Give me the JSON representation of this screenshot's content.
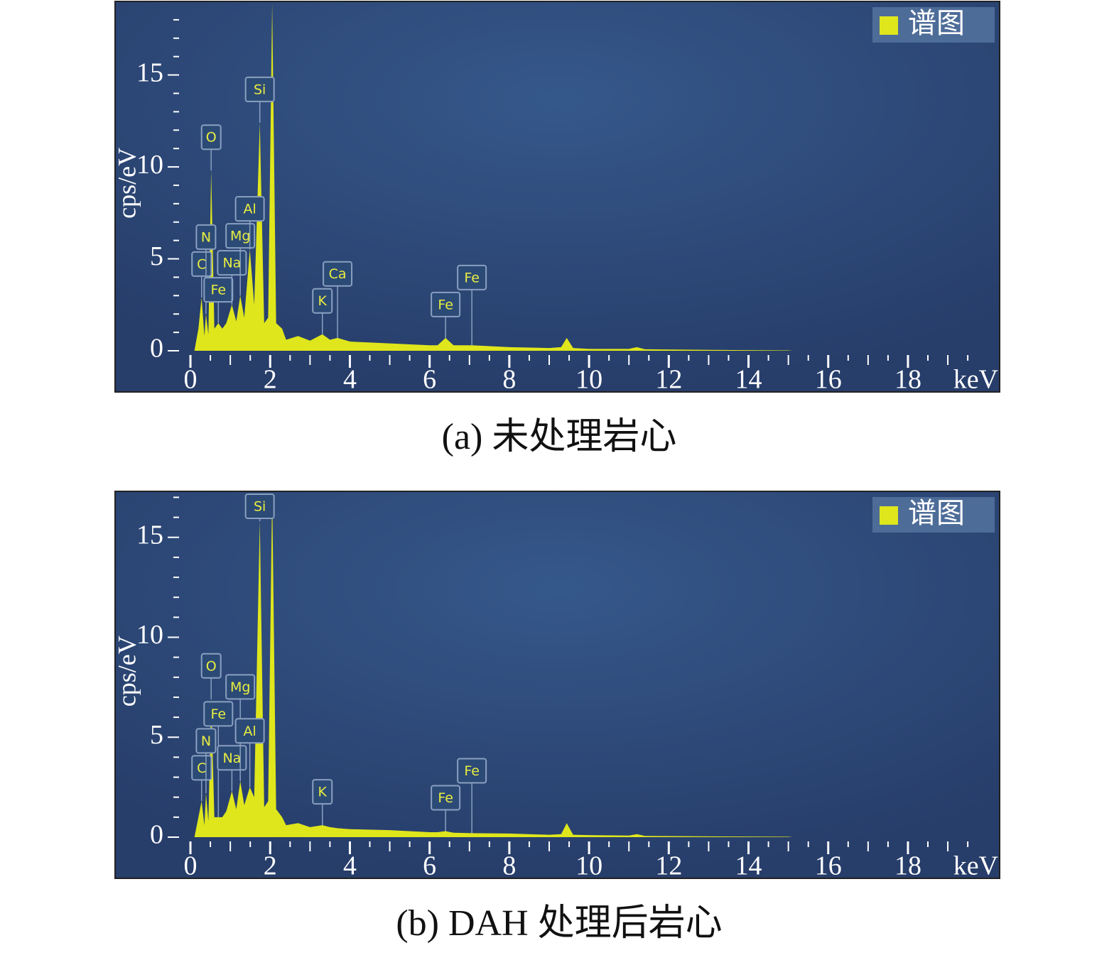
{
  "chart_data": [
    {
      "type": "area",
      "caption": "(a) 未处理岩心",
      "ylabel": "cps/eV",
      "xlabel": "keV",
      "xlim": [
        -1.89,
        20.3
      ],
      "ylim": [
        0,
        19
      ],
      "xticks": [
        0,
        2,
        4,
        6,
        8,
        10,
        12,
        14,
        16,
        18
      ],
      "yticks": [
        0,
        5,
        10,
        15
      ],
      "x": [
        0,
        0.1,
        0.2,
        0.28,
        0.35,
        0.39,
        0.45,
        0.52,
        0.6,
        0.7,
        0.8,
        0.9,
        1.04,
        1.15,
        1.25,
        1.35,
        1.49,
        1.6,
        1.74,
        1.85,
        1.95,
        2.05,
        2.15,
        2.3,
        2.4,
        2.7,
        3.0,
        3.31,
        3.5,
        3.69,
        4,
        5,
        6,
        6.2,
        6.4,
        6.6,
        7.06,
        8,
        9,
        9.3,
        9.44,
        9.6,
        10,
        11,
        11.2,
        11.4,
        13,
        15,
        15.1
      ],
      "series": [
        {
          "name": "谱图",
          "color": "#dfe61c",
          "values": [
            0,
            0,
            1.2,
            2.9,
            0.8,
            2.0,
            0.9,
            9.8,
            1.2,
            1.5,
            1.2,
            1.5,
            2.5,
            1.6,
            3.0,
            1.8,
            5.5,
            2.5,
            12.4,
            1.5,
            1.8,
            18.9,
            1.5,
            1.2,
            0.6,
            0.8,
            0.55,
            0.9,
            0.6,
            0.7,
            0.5,
            0.4,
            0.3,
            0.3,
            0.7,
            0.3,
            0.3,
            0.2,
            0.15,
            0.2,
            0.7,
            0.15,
            0.1,
            0.1,
            0.2,
            0.08,
            0.05,
            0.02,
            0
          ]
        }
      ],
      "annotations": [
        {
          "text": "C",
          "x": 0.28
        },
        {
          "text": "N",
          "x": 0.39
        },
        {
          "text": "O",
          "x": 0.52
        },
        {
          "text": "Fe",
          "x": 0.7
        },
        {
          "text": "Na",
          "x": 1.04
        },
        {
          "text": "Mg",
          "x": 1.25
        },
        {
          "text": "Al",
          "x": 1.49
        },
        {
          "text": "Si",
          "x": 1.74
        },
        {
          "text": "K",
          "x": 3.31
        },
        {
          "text": "Ca",
          "x": 3.69
        },
        {
          "text": "Fe",
          "x": 6.4
        },
        {
          "text": "Fe",
          "x": 7.06
        }
      ]
    },
    {
      "type": "area",
      "caption": "(b) DAH 处理后岩心",
      "ylabel": "cps/eV",
      "xlabel": "keV",
      "xlim": [
        -1.89,
        20.3
      ],
      "ylim": [
        0,
        17.3
      ],
      "xticks": [
        0,
        2,
        4,
        6,
        8,
        10,
        12,
        14,
        16,
        18
      ],
      "yticks": [
        0,
        5,
        10,
        15
      ],
      "x": [
        0,
        0.1,
        0.2,
        0.28,
        0.35,
        0.39,
        0.45,
        0.52,
        0.6,
        0.7,
        0.8,
        0.9,
        1.04,
        1.15,
        1.25,
        1.35,
        1.49,
        1.6,
        1.74,
        1.85,
        1.95,
        2.05,
        2.15,
        2.3,
        2.4,
        2.7,
        3.0,
        3.31,
        3.5,
        3.69,
        4,
        5,
        6,
        6.2,
        6.4,
        6.6,
        7.06,
        8,
        9,
        9.3,
        9.44,
        9.6,
        10,
        11,
        11.2,
        11.4,
        13,
        15,
        15.1
      ],
      "series": [
        {
          "name": "谱图",
          "color": "#dfe61c",
          "values": [
            0,
            0,
            1.0,
            1.8,
            0.6,
            2.2,
            0.8,
            6.9,
            1.0,
            1.0,
            1.0,
            1.3,
            2.3,
            1.4,
            2.8,
            1.6,
            2.5,
            2.0,
            15.8,
            1.5,
            1.8,
            17.3,
            1.4,
            1.0,
            0.6,
            0.7,
            0.5,
            0.6,
            0.5,
            0.45,
            0.4,
            0.35,
            0.25,
            0.25,
            0.3,
            0.22,
            0.2,
            0.18,
            0.12,
            0.15,
            0.7,
            0.12,
            0.1,
            0.08,
            0.15,
            0.06,
            0.04,
            0.02,
            0
          ]
        }
      ],
      "annotations": [
        {
          "text": "C",
          "x": 0.28
        },
        {
          "text": "N",
          "x": 0.39
        },
        {
          "text": "O",
          "x": 0.52
        },
        {
          "text": "Fe",
          "x": 0.7
        },
        {
          "text": "Na",
          "x": 1.04
        },
        {
          "text": "Mg",
          "x": 1.25
        },
        {
          "text": "Al",
          "x": 1.49
        },
        {
          "text": "Si",
          "x": 1.74
        },
        {
          "text": "K",
          "x": 3.31
        },
        {
          "text": "Fe",
          "x": 6.4
        },
        {
          "text": "Fe",
          "x": 7.06
        }
      ]
    }
  ]
}
